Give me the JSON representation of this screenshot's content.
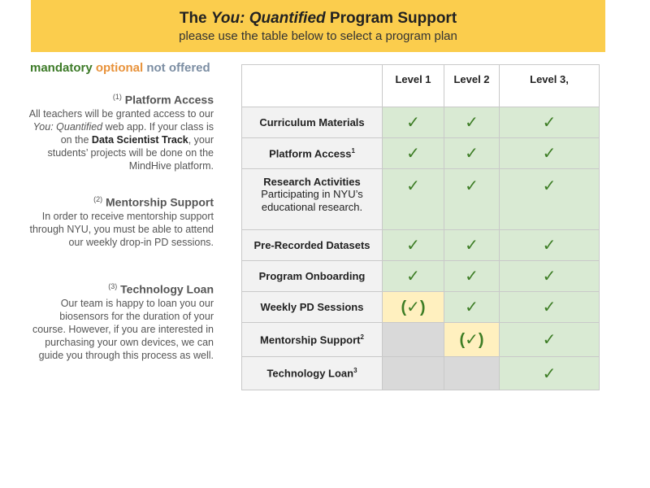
{
  "banner": {
    "title_prefix": "The ",
    "title_italic": "You: Quantified",
    "title_suffix": " Program Support",
    "subtitle": "please use the table below to select a program plan"
  },
  "legend": {
    "mandatory": "mandatory",
    "optional": "optional",
    "not_offered": "not offered",
    "colors": {
      "mandatory": "#3c7a27",
      "optional": "#e8923a",
      "not_offered": "#7c8ea3"
    }
  },
  "notes": [
    {
      "num": "(1)",
      "heading": "Platform Access",
      "text_a": "All teachers will be granted access to our ",
      "text_italic": "You: Quantified",
      "text_b": " web app. If your class is on the ",
      "text_bold": "Data Scientist Track",
      "text_c": ", your students’ projects will be done on the MindHive platform."
    },
    {
      "num": "(2)",
      "heading": "Mentorship Support",
      "text": "In order to receive mentorship support through NYU, you must be able to attend our weekly drop-in PD sessions."
    },
    {
      "num": "(3)",
      "heading": "Technology Loan",
      "text": "Our team is happy to loan you our biosensors for the duration of your course. However, if you are interested in purchasing your own devices, we can guide you through this process as well."
    }
  ],
  "table": {
    "headers": [
      "",
      "Level 1",
      "Level 2",
      "Level 3,"
    ],
    "rows": [
      {
        "feature": "Curriculum Materials",
        "sup": "",
        "desc": "",
        "cells": [
          "✓",
          "✓",
          "✓"
        ]
      },
      {
        "feature": "Platform Access",
        "sup": "1",
        "desc": "",
        "cells": [
          "✓",
          "✓",
          "✓"
        ]
      },
      {
        "feature": "Research Activities",
        "sup": "",
        "desc": "Participating in NYU’s educational research.",
        "cells": [
          "✓",
          "✓",
          "✓"
        ]
      },
      {
        "feature": "Pre-Recorded Datasets",
        "sup": "",
        "desc": "",
        "cells": [
          "✓",
          "✓",
          "✓"
        ]
      },
      {
        "feature": "Program Onboarding",
        "sup": "",
        "desc": "",
        "cells": [
          "✓",
          "✓",
          "✓"
        ]
      },
      {
        "feature": "Weekly PD Sessions",
        "sup": "",
        "desc": "",
        "cells": [
          "(✓)",
          "✓",
          "✓"
        ]
      },
      {
        "feature": "Mentorship Support",
        "sup": "2",
        "desc": "",
        "cells": [
          "",
          "(✓)",
          "✓"
        ]
      },
      {
        "feature": "Technology Loan",
        "sup": "3",
        "desc": "",
        "cells": [
          "",
          "",
          "✓"
        ]
      }
    ],
    "colors": {
      "mandatory": "#d9ead3",
      "optional": "#fff0bf",
      "not_offered": "#d9d9d9",
      "check": "#3d7d25"
    }
  }
}
